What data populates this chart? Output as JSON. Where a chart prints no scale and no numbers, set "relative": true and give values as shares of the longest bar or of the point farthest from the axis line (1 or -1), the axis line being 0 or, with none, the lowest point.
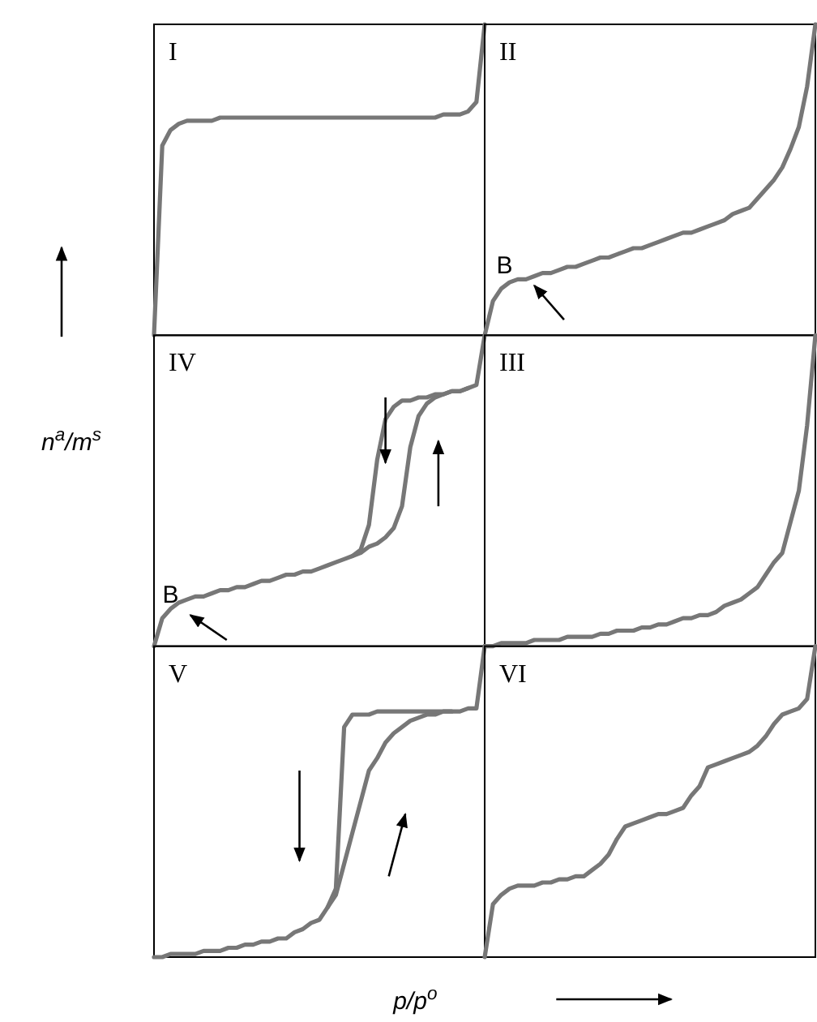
{
  "chart_data": [
    {
      "type": "line",
      "title": "I",
      "relative": true,
      "tick_labels": false,
      "categories": [
        null,
        null,
        null,
        null,
        null,
        null,
        null,
        null,
        null,
        null,
        null,
        null,
        null,
        null,
        null,
        null,
        null,
        null,
        null,
        null,
        null,
        null,
        null,
        null,
        null,
        null,
        null,
        null,
        null,
        null,
        null,
        null,
        null,
        null,
        null,
        null,
        null,
        null,
        null,
        null,
        null
      ],
      "series": [
        {
          "color": "#777777",
          "values": [
            0,
            0.61,
            0.66,
            0.68,
            0.69,
            0.69,
            0.69,
            0.69,
            0.7,
            0.7,
            0.7,
            0.7,
            0.7,
            0.7,
            0.7,
            0.7,
            0.7,
            0.7,
            0.7,
            0.7,
            0.7,
            0.7,
            0.7,
            0.7,
            0.7,
            0.7,
            0.7,
            0.7,
            0.7,
            0.7,
            0.7,
            0.7,
            0.7,
            0.7,
            0.7,
            0.71,
            0.71,
            0.71,
            0.72,
            0.75,
            1
          ]
        }
      ]
    },
    {
      "type": "line",
      "title": "II",
      "relative": true,
      "tick_labels": false,
      "annotations": [
        "B"
      ],
      "categories": [
        null,
        null,
        null,
        null,
        null,
        null,
        null,
        null,
        null,
        null,
        null,
        null,
        null,
        null,
        null,
        null,
        null,
        null,
        null,
        null,
        null,
        null,
        null,
        null,
        null,
        null,
        null,
        null,
        null,
        null,
        null,
        null,
        null,
        null,
        null,
        null,
        null,
        null,
        null,
        null,
        null
      ],
      "series": [
        {
          "color": "#777777",
          "values": [
            0,
            0.11,
            0.15,
            0.17,
            0.18,
            0.18,
            0.19,
            0.2,
            0.2,
            0.21,
            0.22,
            0.22,
            0.23,
            0.24,
            0.25,
            0.25,
            0.26,
            0.27,
            0.28,
            0.28,
            0.29,
            0.3,
            0.31,
            0.32,
            0.33,
            0.33,
            0.34,
            0.35,
            0.36,
            0.37,
            0.39,
            0.4,
            0.41,
            0.44,
            0.47,
            0.5,
            0.54,
            0.6,
            0.67,
            0.8,
            1
          ]
        }
      ]
    },
    {
      "type": "line",
      "title": "IV",
      "ylabel": "n$^{a}$/m$^{s}$",
      "relative": true,
      "tick_labels": false,
      "annotations": [
        "B"
      ],
      "categories": [
        null,
        null,
        null,
        null,
        null,
        null,
        null,
        null,
        null,
        null,
        null,
        null,
        null,
        null,
        null,
        null,
        null,
        null,
        null,
        null,
        null,
        null,
        null,
        null,
        null,
        null,
        null,
        null,
        null,
        null,
        null,
        null,
        null,
        null,
        null,
        null,
        null,
        null,
        null,
        null,
        null
      ],
      "series": [
        {
          "color": "#777777",
          "values": [
            0,
            0.09,
            0.12,
            0.14,
            0.15,
            0.16,
            0.16,
            0.17,
            0.18,
            0.18,
            0.19,
            0.19,
            0.2,
            0.21,
            0.21,
            0.22,
            0.23,
            0.23,
            0.24,
            0.24,
            0.25,
            0.26,
            0.27,
            0.28,
            0.29,
            0.3,
            0.32,
            0.33,
            0.35,
            0.38,
            0.45,
            0.64,
            0.74,
            0.78,
            0.8,
            0.81,
            0.82,
            0.82,
            0.83,
            0.84,
            1
          ]
        },
        {
          "color": "#777777",
          "values": [
            null,
            null,
            null,
            null,
            null,
            null,
            null,
            null,
            null,
            null,
            null,
            null,
            null,
            null,
            null,
            null,
            null,
            null,
            null,
            null,
            null,
            null,
            null,
            null,
            0.29,
            0.31,
            0.39,
            0.6,
            0.73,
            0.77,
            0.79,
            0.79,
            0.8,
            0.8,
            0.81,
            0.81,
            0.82,
            0.82,
            0.83,
            null,
            null
          ]
        }
      ]
    },
    {
      "type": "line",
      "title": "III",
      "relative": true,
      "tick_labels": false,
      "categories": [
        null,
        null,
        null,
        null,
        null,
        null,
        null,
        null,
        null,
        null,
        null,
        null,
        null,
        null,
        null,
        null,
        null,
        null,
        null,
        null,
        null,
        null,
        null,
        null,
        null,
        null,
        null,
        null,
        null,
        null,
        null,
        null,
        null,
        null,
        null,
        null,
        null,
        null,
        null,
        null,
        null
      ],
      "series": [
        {
          "color": "#777777",
          "values": [
            0,
            0,
            0.01,
            0.01,
            0.01,
            0.01,
            0.02,
            0.02,
            0.02,
            0.02,
            0.03,
            0.03,
            0.03,
            0.03,
            0.04,
            0.04,
            0.05,
            0.05,
            0.05,
            0.06,
            0.06,
            0.07,
            0.07,
            0.08,
            0.09,
            0.09,
            0.1,
            0.1,
            0.11,
            0.13,
            0.14,
            0.15,
            0.17,
            0.19,
            0.23,
            0.27,
            0.3,
            0.4,
            0.5,
            0.71,
            1
          ]
        }
      ]
    },
    {
      "type": "line",
      "title": "V",
      "xlabel": "p/p$^{o}$",
      "relative": true,
      "tick_labels": false,
      "categories": [
        null,
        null,
        null,
        null,
        null,
        null,
        null,
        null,
        null,
        null,
        null,
        null,
        null,
        null,
        null,
        null,
        null,
        null,
        null,
        null,
        null,
        null,
        null,
        null,
        null,
        null,
        null,
        null,
        null,
        null,
        null,
        null,
        null,
        null,
        null,
        null,
        null,
        null,
        null,
        null,
        null
      ],
      "series": [
        {
          "color": "#777777",
          "values": [
            0,
            0,
            0.01,
            0.01,
            0.01,
            0.01,
            0.02,
            0.02,
            0.02,
            0.03,
            0.03,
            0.04,
            0.04,
            0.05,
            0.05,
            0.06,
            0.06,
            0.08,
            0.09,
            0.11,
            0.12,
            0.16,
            0.2,
            0.3,
            0.4,
            0.5,
            0.6,
            0.64,
            0.69,
            0.72,
            0.74,
            0.76,
            0.77,
            0.78,
            0.78,
            0.79,
            0.79,
            0.79,
            0.8,
            0.8,
            1
          ]
        },
        {
          "color": "#777777",
          "values": [
            null,
            null,
            null,
            null,
            null,
            null,
            null,
            null,
            null,
            null,
            null,
            null,
            null,
            null,
            null,
            null,
            null,
            null,
            null,
            null,
            null,
            0.16,
            0.22,
            0.74,
            0.78,
            0.78,
            0.78,
            0.79,
            0.79,
            0.79,
            0.79,
            0.79,
            0.79,
            0.79,
            0.79,
            0.79,
            0.79,
            null,
            null,
            null,
            null
          ]
        }
      ]
    },
    {
      "type": "line",
      "title": "VI",
      "relative": true,
      "tick_labels": false,
      "categories": [
        null,
        null,
        null,
        null,
        null,
        null,
        null,
        null,
        null,
        null,
        null,
        null,
        null,
        null,
        null,
        null,
        null,
        null,
        null,
        null,
        null,
        null,
        null,
        null,
        null,
        null,
        null,
        null,
        null,
        null,
        null,
        null,
        null,
        null,
        null,
        null,
        null,
        null,
        null,
        null,
        null
      ],
      "series": [
        {
          "color": "#777777",
          "values": [
            0,
            0.17,
            0.2,
            0.22,
            0.23,
            0.23,
            0.23,
            0.24,
            0.24,
            0.25,
            0.25,
            0.26,
            0.26,
            0.28,
            0.3,
            0.33,
            0.38,
            0.42,
            0.43,
            0.44,
            0.45,
            0.46,
            0.46,
            0.47,
            0.48,
            0.52,
            0.55,
            0.61,
            0.62,
            0.63,
            0.64,
            0.65,
            0.66,
            0.68,
            0.71,
            0.75,
            0.78,
            0.79,
            0.8,
            0.83,
            1
          ]
        }
      ]
    }
  ]
}
